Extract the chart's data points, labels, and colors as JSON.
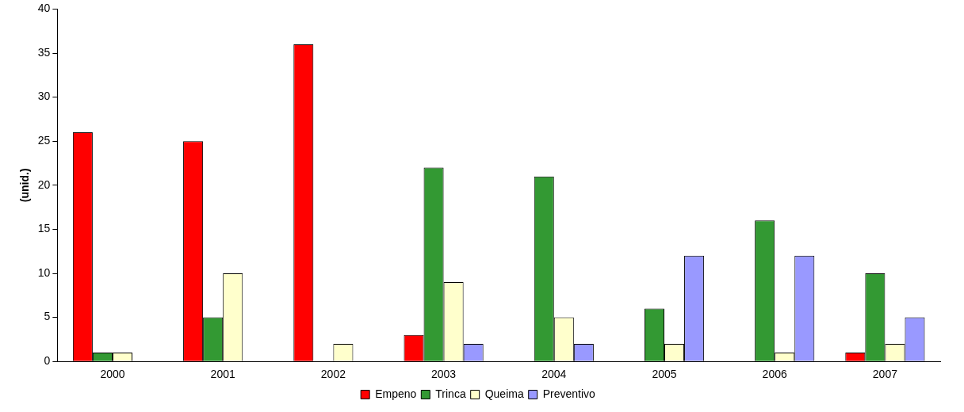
{
  "chart_data": {
    "type": "bar",
    "ylabel": "(unid.)",
    "categories": [
      "2000",
      "2001",
      "2002",
      "2003",
      "2004",
      "2005",
      "2006",
      "2007"
    ],
    "series": [
      {
        "name": "Empeno",
        "color": "#ff0000",
        "values": [
          26,
          25,
          36,
          3,
          null,
          null,
          null,
          1
        ]
      },
      {
        "name": "Trinca",
        "color": "#339933",
        "values": [
          1,
          5,
          null,
          22,
          21,
          6,
          16,
          10
        ]
      },
      {
        "name": "Queima",
        "color": "#ffffcc",
        "values": [
          1,
          10,
          2,
          9,
          5,
          2,
          1,
          2
        ]
      },
      {
        "name": "Preventivo",
        "color": "#9999ff",
        "values": [
          null,
          null,
          null,
          2,
          2,
          12,
          12,
          5
        ]
      }
    ],
    "ylim": [
      0,
      40
    ],
    "yticks": [
      0,
      5,
      10,
      15,
      20,
      25,
      30,
      35,
      40
    ],
    "grid": false,
    "legend": "bottom"
  }
}
